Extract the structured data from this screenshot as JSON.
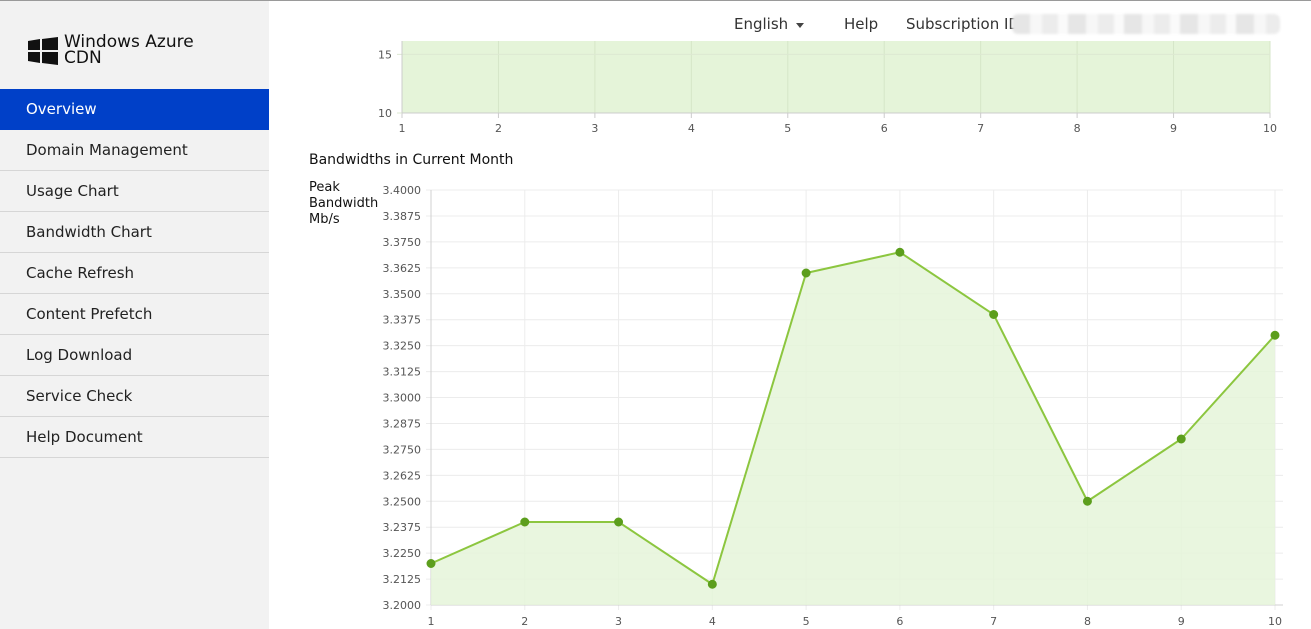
{
  "app": {
    "name_line1": "Windows Azure",
    "name_line2": "CDN"
  },
  "header": {
    "language": "English",
    "help": "Help",
    "subscription_label": "Subscription ID:"
  },
  "sidebar": {
    "items": [
      {
        "label": "Overview",
        "active": true
      },
      {
        "label": "Domain Management"
      },
      {
        "label": "Usage Chart"
      },
      {
        "label": "Bandwidth Chart"
      },
      {
        "label": "Cache Refresh"
      },
      {
        "label": "Content Prefetch"
      },
      {
        "label": "Log Download"
      },
      {
        "label": "Service Check"
      },
      {
        "label": "Help Document"
      }
    ]
  },
  "colors": {
    "accent": "#0040c8",
    "line": "#8cc63f",
    "point": "#5c9e1d",
    "fill": "#e5f4d9"
  },
  "chart_data": [
    {
      "type": "area",
      "title": "",
      "x": [
        1,
        2,
        3,
        4,
        5,
        6,
        7,
        8,
        9,
        10
      ],
      "y_ticks_visible": [
        10,
        15
      ],
      "ylim": [
        10,
        17
      ],
      "grid": true
    },
    {
      "type": "line",
      "title": "Bandwidths in Current Month",
      "ylabel_lines": [
        "Peak",
        "Bandwidth",
        "Mb/s"
      ],
      "x": [
        1,
        2,
        3,
        4,
        5,
        6,
        7,
        8,
        9,
        10
      ],
      "series": [
        {
          "values": [
            3.22,
            3.24,
            3.24,
            3.21,
            3.36,
            3.37,
            3.34,
            3.25,
            3.28,
            3.33
          ]
        }
      ],
      "ylim": [
        3.2,
        3.4
      ],
      "y_ticks": [
        "3.4000",
        "3.3875",
        "3.3750",
        "3.3625",
        "3.3500",
        "3.3375",
        "3.3250",
        "3.3125",
        "3.3000",
        "3.2875",
        "3.2750",
        "3.2625",
        "3.2500",
        "3.2375",
        "3.2250",
        "3.2125",
        "3.2000"
      ],
      "grid": true,
      "filled": true
    }
  ]
}
